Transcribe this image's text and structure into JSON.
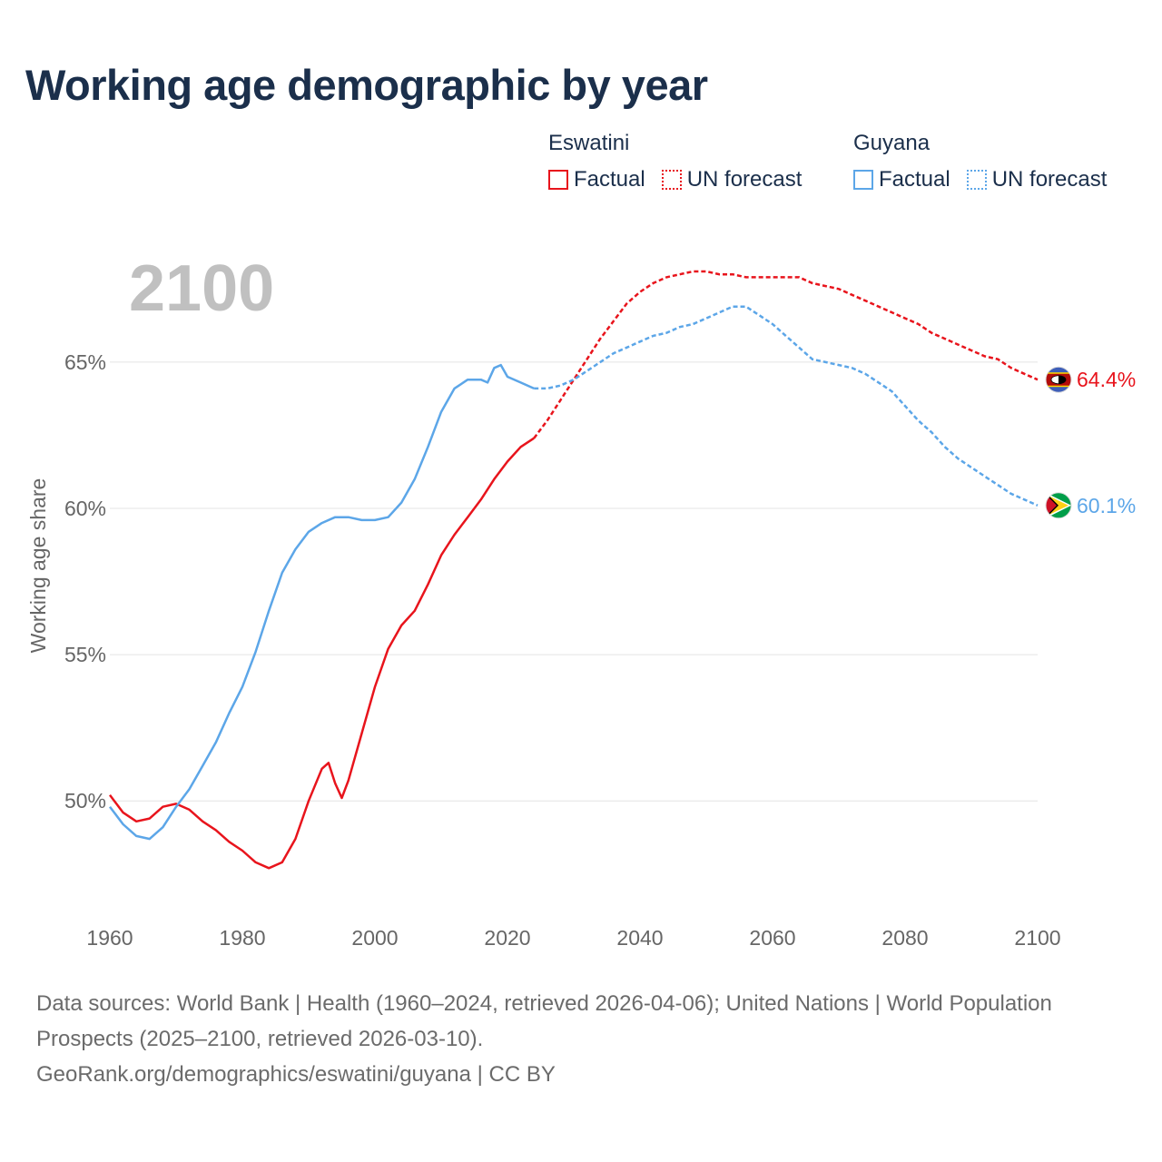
{
  "title": "Working age demographic by year",
  "legend": {
    "groups": [
      {
        "country": "Eswatini",
        "color": "#e8141c",
        "factual_label": "Factual",
        "forecast_label": "UN forecast"
      },
      {
        "country": "Guyana",
        "color": "#5ca6e8",
        "factual_label": "Factual",
        "forecast_label": "UN forecast"
      }
    ]
  },
  "year_watermark": "2100",
  "footer": {
    "sources": "Data sources: World Bank | Health (1960–2024, retrieved 2026-04-06); United Nations | World Population Prospects (2025–2100, retrieved 2026-03-10).",
    "link": "GeoRank.org/demographics/eswatini/guyana | CC BY"
  },
  "chart_data": {
    "type": "line",
    "title": "Working age demographic by year",
    "xlabel": "",
    "ylabel": "Working age share",
    "xlim": [
      1960,
      2100
    ],
    "ylim": [
      46.5,
      69.0
    ],
    "x_ticks": [
      1960,
      1980,
      2000,
      2020,
      2040,
      2060,
      2080,
      2100
    ],
    "y_ticks": [
      50,
      55,
      60,
      65
    ],
    "y_tick_labels": [
      "50%",
      "55%",
      "60%",
      "65%"
    ],
    "grid": "horizontal",
    "factual_end_year": 2024,
    "series": [
      {
        "name": "Eswatini",
        "color": "#e8141c",
        "end_label": "64.4%",
        "end_flag": "eswatini-flag",
        "points": [
          [
            1960,
            50.2
          ],
          [
            1962,
            49.6
          ],
          [
            1964,
            49.3
          ],
          [
            1966,
            49.4
          ],
          [
            1968,
            49.8
          ],
          [
            1970,
            49.9
          ],
          [
            1972,
            49.7
          ],
          [
            1974,
            49.3
          ],
          [
            1976,
            49.0
          ],
          [
            1978,
            48.6
          ],
          [
            1980,
            48.3
          ],
          [
            1982,
            47.9
          ],
          [
            1984,
            47.7
          ],
          [
            1986,
            47.9
          ],
          [
            1988,
            48.7
          ],
          [
            1990,
            50.0
          ],
          [
            1992,
            51.1
          ],
          [
            1993,
            51.3
          ],
          [
            1994,
            50.6
          ],
          [
            1995,
            50.1
          ],
          [
            1996,
            50.7
          ],
          [
            1998,
            52.3
          ],
          [
            2000,
            53.9
          ],
          [
            2002,
            55.2
          ],
          [
            2004,
            56.0
          ],
          [
            2006,
            56.5
          ],
          [
            2008,
            57.4
          ],
          [
            2010,
            58.4
          ],
          [
            2012,
            59.1
          ],
          [
            2014,
            59.7
          ],
          [
            2016,
            60.3
          ],
          [
            2018,
            61.0
          ],
          [
            2020,
            61.6
          ],
          [
            2022,
            62.1
          ],
          [
            2024,
            62.4
          ],
          [
            2026,
            63.0
          ],
          [
            2028,
            63.7
          ],
          [
            2030,
            64.4
          ],
          [
            2032,
            65.1
          ],
          [
            2034,
            65.8
          ],
          [
            2036,
            66.4
          ],
          [
            2038,
            67.0
          ],
          [
            2040,
            67.4
          ],
          [
            2042,
            67.7
          ],
          [
            2044,
            67.9
          ],
          [
            2046,
            68.0
          ],
          [
            2048,
            68.1
          ],
          [
            2050,
            68.1
          ],
          [
            2052,
            68.0
          ],
          [
            2054,
            68.0
          ],
          [
            2056,
            67.9
          ],
          [
            2058,
            67.9
          ],
          [
            2060,
            67.9
          ],
          [
            2062,
            67.9
          ],
          [
            2064,
            67.9
          ],
          [
            2066,
            67.7
          ],
          [
            2068,
            67.6
          ],
          [
            2070,
            67.5
          ],
          [
            2072,
            67.3
          ],
          [
            2074,
            67.1
          ],
          [
            2076,
            66.9
          ],
          [
            2078,
            66.7
          ],
          [
            2080,
            66.5
          ],
          [
            2082,
            66.3
          ],
          [
            2084,
            66.0
          ],
          [
            2086,
            65.8
          ],
          [
            2088,
            65.6
          ],
          [
            2090,
            65.4
          ],
          [
            2092,
            65.2
          ],
          [
            2094,
            65.1
          ],
          [
            2096,
            64.8
          ],
          [
            2098,
            64.6
          ],
          [
            2100,
            64.4
          ]
        ]
      },
      {
        "name": "Guyana",
        "color": "#5ca6e8",
        "end_label": "60.1%",
        "end_flag": "guyana-flag",
        "points": [
          [
            1960,
            49.8
          ],
          [
            1962,
            49.2
          ],
          [
            1964,
            48.8
          ],
          [
            1966,
            48.7
          ],
          [
            1968,
            49.1
          ],
          [
            1970,
            49.8
          ],
          [
            1972,
            50.4
          ],
          [
            1974,
            51.2
          ],
          [
            1976,
            52.0
          ],
          [
            1978,
            53.0
          ],
          [
            1980,
            53.9
          ],
          [
            1982,
            55.1
          ],
          [
            1984,
            56.5
          ],
          [
            1986,
            57.8
          ],
          [
            1988,
            58.6
          ],
          [
            1990,
            59.2
          ],
          [
            1992,
            59.5
          ],
          [
            1994,
            59.7
          ],
          [
            1996,
            59.7
          ],
          [
            1998,
            59.6
          ],
          [
            2000,
            59.6
          ],
          [
            2002,
            59.7
          ],
          [
            2004,
            60.2
          ],
          [
            2006,
            61.0
          ],
          [
            2008,
            62.1
          ],
          [
            2010,
            63.3
          ],
          [
            2012,
            64.1
          ],
          [
            2014,
            64.4
          ],
          [
            2016,
            64.4
          ],
          [
            2017,
            64.3
          ],
          [
            2018,
            64.8
          ],
          [
            2019,
            64.9
          ],
          [
            2020,
            64.5
          ],
          [
            2022,
            64.3
          ],
          [
            2024,
            64.1
          ],
          [
            2026,
            64.1
          ],
          [
            2028,
            64.2
          ],
          [
            2030,
            64.4
          ],
          [
            2032,
            64.7
          ],
          [
            2034,
            65.0
          ],
          [
            2036,
            65.3
          ],
          [
            2038,
            65.5
          ],
          [
            2040,
            65.7
          ],
          [
            2042,
            65.9
          ],
          [
            2044,
            66.0
          ],
          [
            2046,
            66.2
          ],
          [
            2048,
            66.3
          ],
          [
            2050,
            66.5
          ],
          [
            2052,
            66.7
          ],
          [
            2054,
            66.9
          ],
          [
            2056,
            66.9
          ],
          [
            2058,
            66.6
          ],
          [
            2060,
            66.3
          ],
          [
            2062,
            65.9
          ],
          [
            2064,
            65.5
          ],
          [
            2066,
            65.1
          ],
          [
            2068,
            65.0
          ],
          [
            2070,
            64.9
          ],
          [
            2072,
            64.8
          ],
          [
            2074,
            64.6
          ],
          [
            2076,
            64.3
          ],
          [
            2078,
            64.0
          ],
          [
            2080,
            63.5
          ],
          [
            2082,
            63.0
          ],
          [
            2084,
            62.6
          ],
          [
            2086,
            62.1
          ],
          [
            2088,
            61.7
          ],
          [
            2090,
            61.4
          ],
          [
            2092,
            61.1
          ],
          [
            2094,
            60.8
          ],
          [
            2096,
            60.5
          ],
          [
            2098,
            60.3
          ],
          [
            2100,
            60.1
          ]
        ]
      }
    ]
  }
}
